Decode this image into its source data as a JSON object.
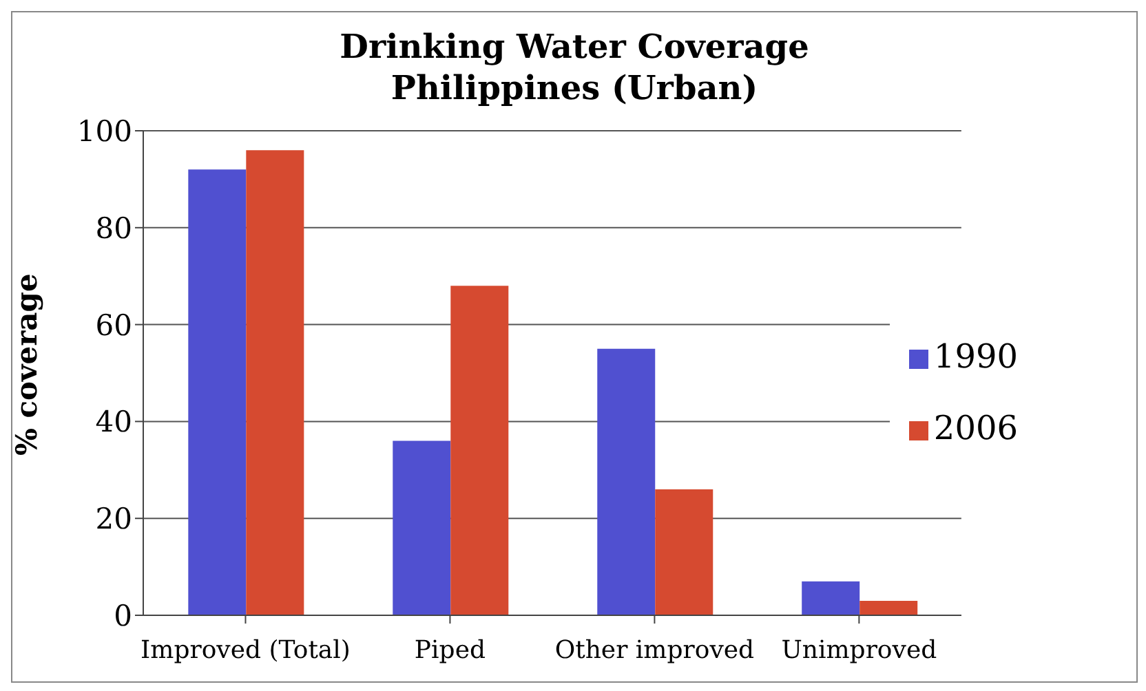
{
  "chart_data": {
    "type": "bar",
    "title": "Drinking Water Coverage\nPhilippines (Urban)",
    "ylabel": "% coverage",
    "categories": [
      "Improved (Total)",
      "Piped",
      "Other improved",
      "Unimproved"
    ],
    "series": [
      {
        "name": "1990",
        "color": "#5050d0",
        "values": [
          92,
          36,
          55,
          7
        ]
      },
      {
        "name": "2006",
        "color": "#d64a30",
        "values": [
          96,
          68,
          26,
          3
        ]
      }
    ],
    "ylim": [
      0,
      100
    ],
    "yticks": [
      0,
      20,
      40,
      60,
      80,
      100
    ],
    "grid": "y",
    "legend": "right"
  }
}
